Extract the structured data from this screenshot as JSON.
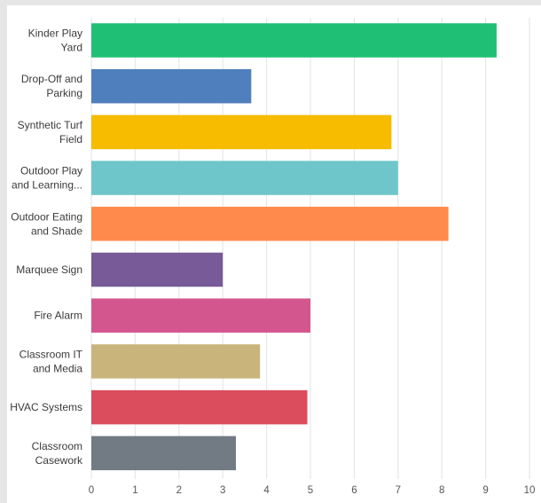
{
  "chart_data": {
    "type": "bar",
    "orientation": "horizontal",
    "categories": [
      [
        "Kinder Play",
        "Yard"
      ],
      [
        "Drop-Off and",
        "Parking"
      ],
      [
        "Synthetic Turf",
        "Field"
      ],
      [
        "Outdoor Play",
        "and Learning..."
      ],
      [
        "Outdoor Eating",
        "and Shade"
      ],
      [
        "Marquee Sign"
      ],
      [
        "Fire Alarm"
      ],
      [
        "Classroom IT",
        "and Media"
      ],
      [
        "HVAC Systems"
      ],
      [
        "Classroom",
        "Casework"
      ]
    ],
    "values": [
      9.25,
      3.65,
      6.85,
      7.0,
      8.15,
      3.0,
      5.0,
      3.85,
      4.93,
      3.3
    ],
    "colors": [
      "#1fbf76",
      "#4f7fbd",
      "#f7bb00",
      "#6ec6ca",
      "#ff8a4c",
      "#775a97",
      "#d4568f",
      "#c9b57c",
      "#db4c5d",
      "#727b84"
    ],
    "xlim": [
      0,
      10
    ],
    "xticks": [
      "0",
      "1",
      "2",
      "3",
      "4",
      "5",
      "6",
      "7",
      "8",
      "9",
      "10"
    ],
    "title": "",
    "xlabel": "",
    "ylabel": "",
    "grid": true,
    "legend": "none"
  }
}
